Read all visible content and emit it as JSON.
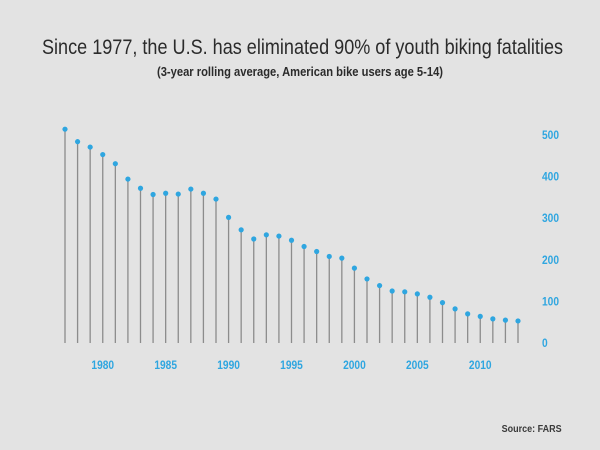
{
  "chart_data": {
    "type": "lollipop",
    "title": "Since 1977, the U.S. has eliminated 90% of youth biking fatalities",
    "subtitle": "(3-year rolling average, American bike users age 5-14)",
    "source": "Source: FARS",
    "x": [
      1977,
      1978,
      1979,
      1980,
      1981,
      1982,
      1983,
      1984,
      1985,
      1986,
      1987,
      1988,
      1989,
      1990,
      1991,
      1992,
      1993,
      1994,
      1995,
      1996,
      1997,
      1998,
      1999,
      2000,
      2001,
      2002,
      2003,
      2004,
      2005,
      2006,
      2007,
      2008,
      2009,
      2010,
      2011,
      2012,
      2013
    ],
    "values": [
      514,
      484,
      471,
      453,
      431,
      394,
      372,
      357,
      360,
      358,
      370,
      360,
      346,
      302,
      272,
      250,
      260,
      257,
      247,
      232,
      220,
      208,
      204,
      180,
      154,
      138,
      125,
      123,
      118,
      110,
      97,
      82,
      70,
      64,
      58,
      55,
      53
    ],
    "xticks": [
      "1980",
      "1985",
      "1990",
      "1995",
      "2000",
      "2005",
      "2010"
    ],
    "yticks": [
      "0",
      "100",
      "200",
      "300",
      "400",
      "500"
    ],
    "ylim": [
      0,
      500
    ],
    "xlim": [
      1977,
      2013
    ],
    "y_axis_side": "right",
    "grid": false,
    "colors": {
      "marker": "#2fa6e0",
      "stem": "#8c8c8c",
      "tick_text": "#2fa6e0"
    }
  }
}
